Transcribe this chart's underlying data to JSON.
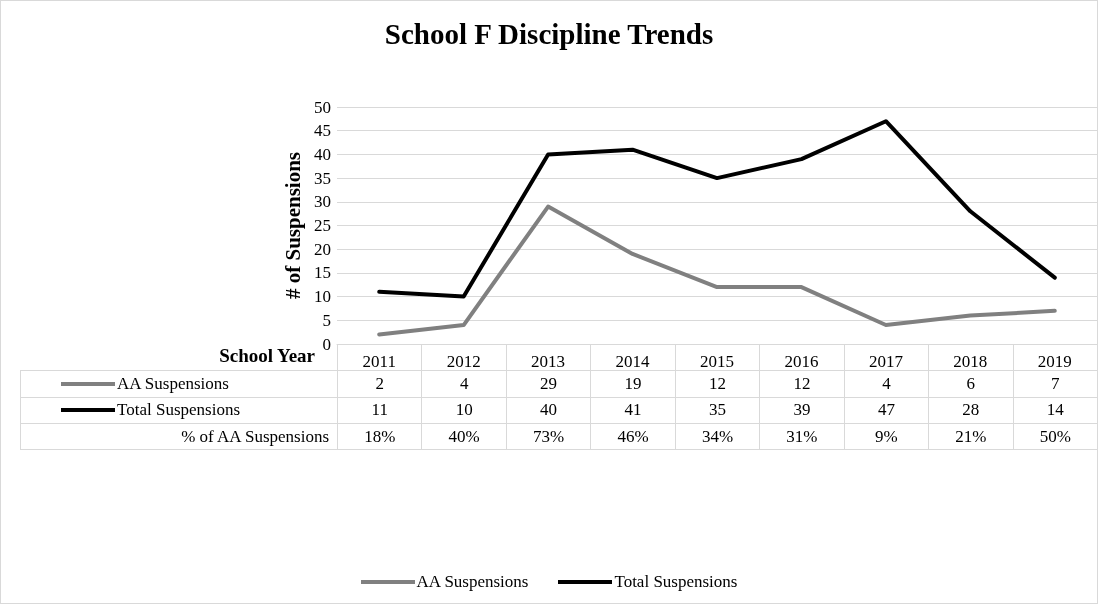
{
  "chart_data": {
    "type": "line",
    "title": "School F Discipline Trends",
    "xlabel": "School Year",
    "ylabel": "# of Suspensions",
    "categories": [
      "2011",
      "2012",
      "2013",
      "2014",
      "2015",
      "2016",
      "2017",
      "2018",
      "2019"
    ],
    "series": [
      {
        "name": "AA Suspensions",
        "color": "#808080",
        "values": [
          2,
          4,
          29,
          19,
          12,
          12,
          4,
          6,
          7
        ]
      },
      {
        "name": "Total Suspensions",
        "color": "#000000",
        "values": [
          11,
          10,
          40,
          41,
          35,
          39,
          47,
          28,
          14
        ]
      }
    ],
    "annotations": [
      "% of AA Suspensions",
      "18%",
      "40%",
      "73%",
      "46%",
      "34%",
      "31%",
      "9%",
      "21%",
      "50%"
    ],
    "ylim": [
      0,
      50
    ],
    "yticks": [
      0,
      5,
      10,
      15,
      20,
      25,
      30,
      35,
      40,
      45,
      50
    ],
    "grid": "y",
    "legend": "bottom",
    "marker": "none",
    "line_style": "solid",
    "data_labels": true
  }
}
